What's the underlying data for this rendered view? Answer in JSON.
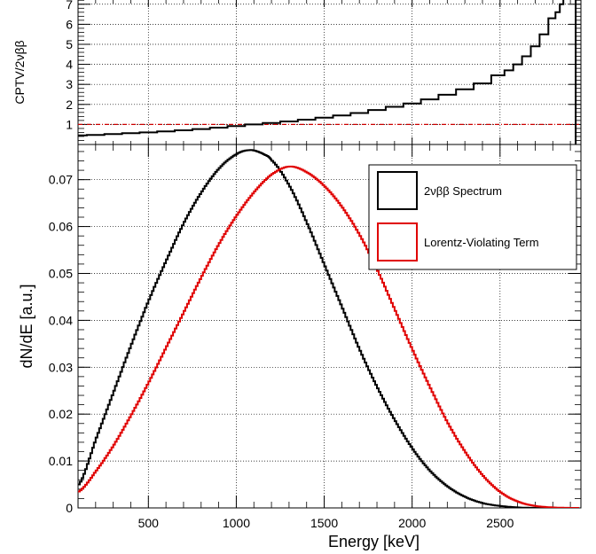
{
  "chart_data": [
    {
      "id": "ratio",
      "type": "line",
      "ylabel": "CPTV/2νββ",
      "xlim": [
        100,
        2960
      ],
      "ylim": [
        0,
        7.3
      ],
      "yticks": [
        1,
        2,
        3,
        4,
        5,
        6,
        7
      ],
      "grid": true,
      "reference_line": {
        "y": 1,
        "color": "#cc0000",
        "style": "dash-dot"
      },
      "series": [
        {
          "color": "#000000",
          "x": [
            100,
            200,
            300,
            400,
            500,
            600,
            700,
            800,
            900,
            1000,
            1100,
            1200,
            1300,
            1400,
            1500,
            1600,
            1700,
            1800,
            1900,
            2000,
            2100,
            2200,
            2300,
            2400,
            2500,
            2550,
            2600,
            2650,
            2700,
            2750,
            2800,
            2830,
            2850,
            2870,
            2890,
            2905,
            2915,
            2925,
            2935
          ],
          "y": [
            0.45,
            0.48,
            0.52,
            0.56,
            0.6,
            0.65,
            0.71,
            0.77,
            0.84,
            0.92,
            1.0,
            1.07,
            1.15,
            1.24,
            1.34,
            1.45,
            1.57,
            1.72,
            1.88,
            2.05,
            2.25,
            2.48,
            2.75,
            3.05,
            3.45,
            3.7,
            4.0,
            4.4,
            4.9,
            5.5,
            6.3,
            6.6,
            7.0,
            7.3,
            7.5,
            7.3,
            7.5,
            7.5,
            0
          ]
        }
      ]
    },
    {
      "id": "spectrum",
      "type": "line",
      "xlabel": "Energy [keV]",
      "ylabel": "dN/dE [a.u.]",
      "xlim": [
        100,
        2960
      ],
      "ylim": [
        0,
        0.0775
      ],
      "xticks": [
        500,
        1000,
        1500,
        2000,
        2500
      ],
      "yticks": [
        0,
        0.01,
        0.02,
        0.03,
        0.04,
        0.05,
        0.06,
        0.07
      ],
      "grid": true,
      "legend": {
        "placement": "top-right"
      },
      "series": [
        {
          "name": "2νββ Spectrum",
          "color": "#000000",
          "x": [
            100,
            200,
            300,
            400,
            500,
            600,
            700,
            800,
            900,
            1000,
            1080,
            1150,
            1200,
            1300,
            1400,
            1500,
            1600,
            1700,
            1800,
            1900,
            2000,
            2100,
            2200,
            2300,
            2400,
            2500,
            2600,
            2700,
            2800,
            2900
          ],
          "y": [
            0.005,
            0.015,
            0.025,
            0.035,
            0.0445,
            0.053,
            0.061,
            0.0675,
            0.0725,
            0.0755,
            0.0763,
            0.0755,
            0.074,
            0.0685,
            0.0605,
            0.0515,
            0.0425,
            0.0335,
            0.0255,
            0.0185,
            0.0125,
            0.0078,
            0.0045,
            0.0023,
            0.001,
            0.0004,
            0.0001,
            0.0,
            0.0,
            0.0
          ]
        },
        {
          "name": "Lorentz-Violating Term",
          "color": "#e00000",
          "x": [
            100,
            200,
            300,
            400,
            500,
            600,
            700,
            800,
            900,
            1000,
            1100,
            1200,
            1300,
            1400,
            1500,
            1600,
            1700,
            1800,
            1900,
            2000,
            2100,
            2200,
            2300,
            2400,
            2500,
            2600,
            2700,
            2800,
            2900,
            2950
          ],
          "y": [
            0.0035,
            0.008,
            0.0135,
            0.02,
            0.027,
            0.0345,
            0.042,
            0.0495,
            0.0565,
            0.0625,
            0.0675,
            0.0712,
            0.0728,
            0.0715,
            0.0685,
            0.064,
            0.058,
            0.0505,
            0.042,
            0.0335,
            0.0255,
            0.018,
            0.0118,
            0.0068,
            0.0033,
            0.0013,
            0.0004,
            0.0001,
            0.0,
            0.0
          ]
        }
      ]
    }
  ]
}
